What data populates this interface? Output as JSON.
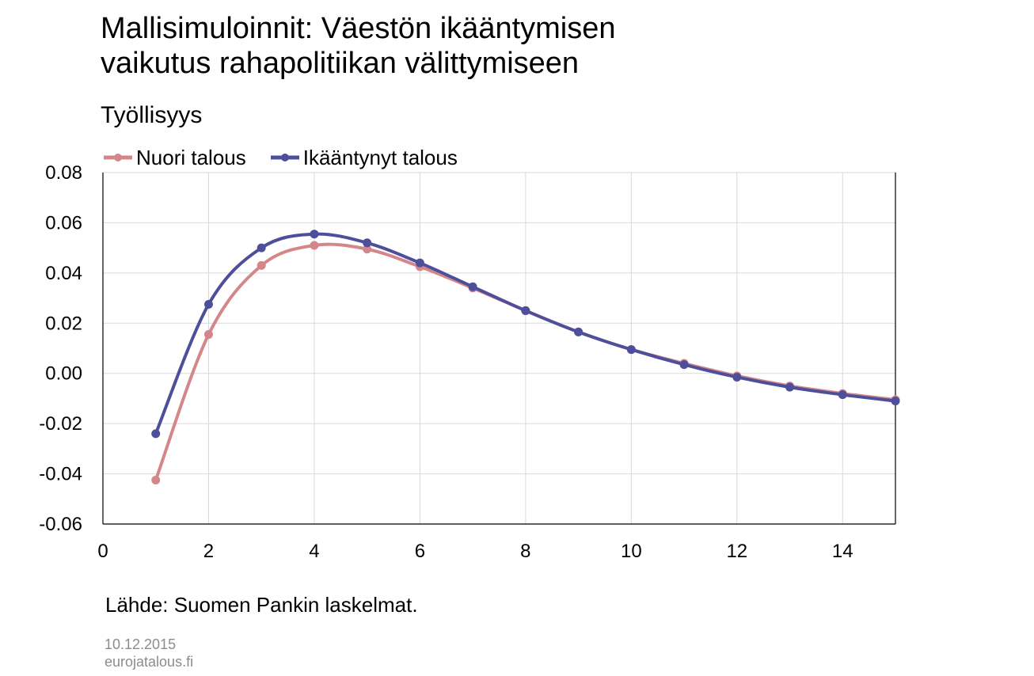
{
  "header": {
    "title_line1": "Mallisimuloinnit: Väestön ikääntymisen",
    "title_line2": "vaikutus rahapolitiikan välittymiseen",
    "subtitle": "Työllisyys"
  },
  "footer": {
    "source": "Lähde: Suomen Pankin laskelmat.",
    "date": "10.12.2015",
    "site": "eurojatalous.fi"
  },
  "colors": {
    "nuori": "#d4878b",
    "ikaantynyt": "#4e4f9a",
    "grid": "#d9d9d9",
    "axis": "#000000"
  },
  "chart_data": {
    "type": "line",
    "title": "Työllisyys",
    "xlabel": "",
    "ylabel": "",
    "xlim": [
      0,
      15
    ],
    "ylim": [
      -0.06,
      0.08
    ],
    "xticks": [
      "0",
      "2",
      "4",
      "6",
      "8",
      "10",
      "12",
      "14"
    ],
    "xtick_values": [
      0,
      2,
      4,
      6,
      8,
      10,
      12,
      14
    ],
    "yticks": [
      "0.08",
      "0.06",
      "0.04",
      "0.02",
      "0.00",
      "-0.02",
      "-0.04",
      "-0.06"
    ],
    "ytick_values": [
      0.08,
      0.06,
      0.04,
      0.02,
      0.0,
      -0.02,
      -0.04,
      -0.06
    ],
    "grid": true,
    "legend": "top-left",
    "x": [
      1,
      2,
      3,
      4,
      5,
      6,
      7,
      8,
      9,
      10,
      11,
      12,
      13,
      14,
      15
    ],
    "series": [
      {
        "name": "Nuori talous",
        "color": "#d4878b",
        "values": [
          -0.0425,
          0.0155,
          0.043,
          0.051,
          0.0495,
          0.0425,
          0.034,
          0.025,
          0.0165,
          0.0095,
          0.004,
          -0.001,
          -0.005,
          -0.008,
          -0.0105
        ]
      },
      {
        "name": "Ikääntynyt talous",
        "color": "#4e4f9a",
        "values": [
          -0.024,
          0.0275,
          0.05,
          0.0555,
          0.052,
          0.044,
          0.0345,
          0.025,
          0.0165,
          0.0095,
          0.0035,
          -0.0015,
          -0.0055,
          -0.0085,
          -0.011
        ]
      }
    ]
  }
}
